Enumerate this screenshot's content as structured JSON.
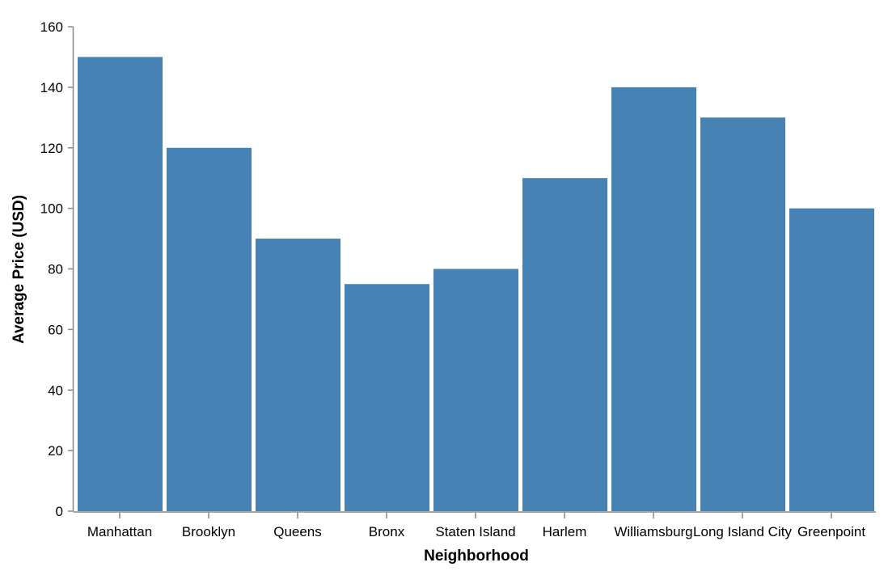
{
  "chart_data": {
    "type": "bar",
    "xlabel": "Neighborhood",
    "ylabel": "Average Price (USD)",
    "categories": [
      "Manhattan",
      "Brooklyn",
      "Queens",
      "Bronx",
      "Staten Island",
      "Harlem",
      "Williamsburg",
      "Long Island City",
      "Greenpoint"
    ],
    "values": [
      150,
      120,
      90,
      75,
      80,
      110,
      140,
      130,
      100
    ],
    "ylim": [
      0,
      160
    ],
    "yticks": [
      0,
      20,
      40,
      60,
      80,
      100,
      120,
      140,
      160
    ],
    "grid": false,
    "bar_color": "#4682b4",
    "axis_color": "#888888"
  }
}
